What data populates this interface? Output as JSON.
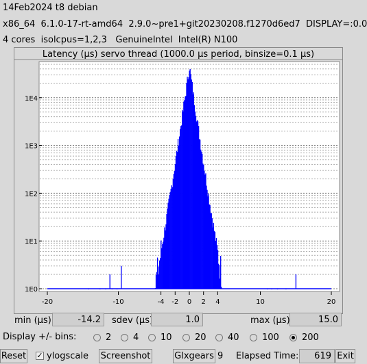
{
  "header": {
    "line1": "14Feb2024 t8 debian",
    "line2": "x86_64  6.1.0-17-rt-amd64  2.9.0~pre1+git20230208.f1270d6ed7  DISPLAY=:0.0",
    "line3": "4 cores  isolcpus=1,2,3   GenuineIntel  Intel(R) N100"
  },
  "chart_data": {
    "type": "bar",
    "title": "Latency (µs) servo thread (1000.0 µs period, binsize=0.1 µs)",
    "xlabel": "",
    "ylabel": "",
    "ylog": true,
    "xlim": [
      -20,
      20
    ],
    "ylim": [
      1,
      50000
    ],
    "xtick_labels": [
      "-20",
      "-10",
      "-4",
      "-2",
      "0",
      "2",
      "4",
      "10",
      "20"
    ],
    "xtick_values": [
      -20,
      -10,
      -4,
      -2,
      0,
      2,
      4,
      10,
      20
    ],
    "ytick_labels": [
      "1E0",
      "1E1",
      "1E2",
      "1E3",
      "1E4"
    ],
    "ytick_values": [
      1,
      10,
      100,
      1000,
      10000
    ],
    "grid": true,
    "bar_color": "#0000ff",
    "peak_x": 0.0,
    "peak_value": 45000,
    "min_x": -14.2,
    "max_x": 15.0,
    "sdev": 1.0
  },
  "stats": {
    "min_label": "min (µs)",
    "min_value": "-14.2",
    "sdev_label": "sdev (µs)",
    "sdev_value": "1.0",
    "max_label": "max (µs)",
    "max_value": "15.0"
  },
  "bins": {
    "label": "Display +/- bins:",
    "options": [
      "2",
      "4",
      "10",
      "20",
      "40",
      "100",
      "200"
    ],
    "selected": "200"
  },
  "footer": {
    "reset_label": "Reset",
    "ylog_checkbox_mark": "✓",
    "ylog_label": "ylogscale",
    "ylog_checked": true,
    "screenshot_label": "Screenshot",
    "glxgears_label": "Glxgears",
    "glxgears_count": "9",
    "elapsed_label": "Elapsed Time:",
    "elapsed_value": "619",
    "exit_label": "Exit"
  }
}
